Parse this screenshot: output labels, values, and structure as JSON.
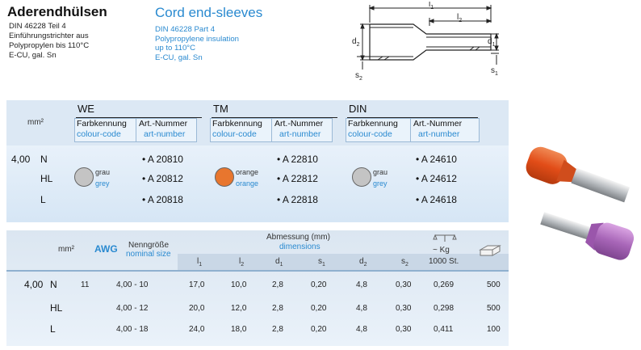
{
  "header": {
    "title_de": "Aderendhülsen",
    "title_en": "Cord end-sleeves",
    "subtitle_de": [
      "DIN 46228 Teil 4",
      "Einführungstrichter aus",
      "Polypropylen bis 110°C",
      "E-CU, gal. Sn"
    ],
    "subtitle_en": [
      "DIN 46228 Part 4",
      "Polypropylene insulation",
      "up to 110°C",
      "E-CU, gal. Sn"
    ]
  },
  "drawing": {
    "labels": {
      "l1": "l",
      "l1_sub": "1",
      "l2": "l",
      "l2_sub": "2",
      "d2": "d",
      "d2_sub": "2",
      "d1": "d",
      "d1_sub": "1",
      "s2": "s",
      "s2_sub": "2",
      "s1": "s",
      "s1_sub": "1"
    }
  },
  "table1": {
    "unit": "mm²",
    "groups": [
      {
        "name": "WE",
        "hdr_de_a": "Farbkennung",
        "hdr_en_a": "colour-code",
        "hdr_de_b": "Art.-Nummer",
        "hdr_en_b": "art-number",
        "color_de": "grau",
        "color_en": "grey",
        "swatch": "#c4c4c4",
        "codes": [
          "• A 20810",
          "• A 20812",
          "• A 20818"
        ]
      },
      {
        "name": "TM",
        "hdr_de_a": "Farbkennung",
        "hdr_en_a": "colour-code",
        "hdr_de_b": "Art.-Nummer",
        "hdr_en_b": "art-number",
        "color_de": "orange",
        "color_en": "orange",
        "swatch": "#e8762e",
        "codes": [
          "• A 22810",
          "• A 22812",
          "• A 22818"
        ]
      },
      {
        "name": "DIN",
        "hdr_de_a": "Farbkennung",
        "hdr_en_a": "colour-code",
        "hdr_de_b": "Art.-Nummer",
        "hdr_en_b": "art-number",
        "color_de": "grau",
        "color_en": "grey",
        "swatch": "#c4c4c4",
        "codes": [
          "• A 24610",
          "• A 24612",
          "• A 24618"
        ]
      }
    ],
    "size": "4,00",
    "variants": [
      "N",
      "HL",
      "L"
    ]
  },
  "table2": {
    "unit": "mm²",
    "awg": "AWG",
    "nenn_de": "Nenngröße",
    "nenn_en": "nominal size",
    "dim_de": "Abmessung (mm)",
    "dim_en": "dimensions",
    "dim_cols": [
      {
        "sym": "l",
        "sub": "1"
      },
      {
        "sym": "l",
        "sub": "2"
      },
      {
        "sym": "d",
        "sub": "1"
      },
      {
        "sym": "s",
        "sub": "1"
      },
      {
        "sym": "d",
        "sub": "2"
      },
      {
        "sym": "s",
        "sub": "2"
      }
    ],
    "weight_top": "~ Kg",
    "weight_bot": "1000 St.",
    "size": "4,00",
    "rows": [
      {
        "variant": "N",
        "awg": "11",
        "nominal": "4,00 - 10",
        "l1": "17,0",
        "l2": "10,0",
        "d1": "2,8",
        "s1": "0,20",
        "d2": "4,8",
        "s2": "0,30",
        "kg": "0,269",
        "pack": "500"
      },
      {
        "variant": "HL",
        "awg": "",
        "nominal": "4,00 - 12",
        "l1": "20,0",
        "l2": "12,0",
        "d1": "2,8",
        "s1": "0,20",
        "d2": "4,8",
        "s2": "0,30",
        "kg": "0,298",
        "pack": "500"
      },
      {
        "variant": "L",
        "awg": "",
        "nominal": "4,00 - 18",
        "l1": "24,0",
        "l2": "18,0",
        "d1": "2,8",
        "s1": "0,20",
        "d2": "4,8",
        "s2": "0,30",
        "kg": "0,411",
        "pack": "100"
      }
    ]
  }
}
